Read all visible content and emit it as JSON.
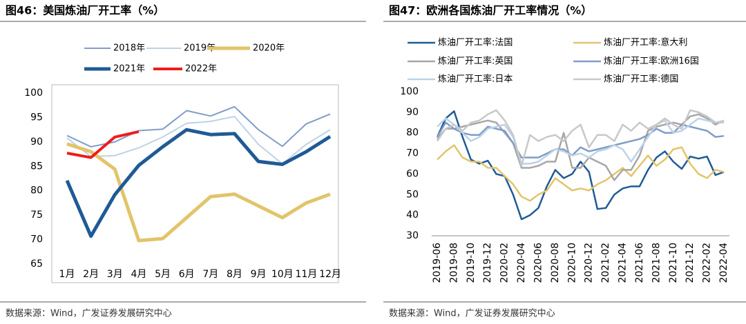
{
  "chart_data": [
    {
      "type": "line",
      "title": "图46：美国炼油厂开工率（%）",
      "categories": [
        "1月",
        "2月",
        "3月",
        "4月",
        "5月",
        "6月",
        "7月",
        "8月",
        "9月",
        "10月",
        "11月",
        "12月"
      ],
      "series": [
        {
          "name": "2018年",
          "color": "#7f9cc8",
          "values": [
            91.3,
            89,
            90,
            92.3,
            92.6,
            96.4,
            95.3,
            97.2,
            92.5,
            89.1,
            93.7,
            95.7
          ]
        },
        {
          "name": "2019年",
          "color": "#bcd2e8",
          "values": [
            90.8,
            87,
            87.2,
            88.8,
            91,
            93.8,
            94.2,
            95.2,
            89.5,
            85.5,
            89.5,
            92.5
          ]
        },
        {
          "name": "2020年",
          "color": "#e2c46a",
          "values": [
            89.6,
            88,
            84.4,
            69.8,
            70.2,
            74.5,
            78.8,
            79.3,
            76.9,
            74.5,
            77.5,
            79.3
          ]
        },
        {
          "name": "2021年",
          "color": "#1f5a96",
          "values": [
            82.1,
            70.7,
            79.2,
            85.2,
            89,
            92.5,
            91.5,
            91.7,
            86,
            85.4,
            88,
            91.1
          ]
        },
        {
          "name": "2022年",
          "color": "#ee1c1c",
          "values": [
            87.7,
            86.8,
            91,
            92.1,
            null,
            null,
            null,
            null,
            null,
            null,
            null,
            null
          ]
        }
      ],
      "ylim": [
        65,
        100
      ],
      "yticks": [
        65,
        70,
        75,
        80,
        85,
        90,
        95,
        100
      ],
      "source": "数据来源：Wind，广发证券发展研究中心"
    },
    {
      "type": "line",
      "title": "图47：欧洲各国炼油厂开工率情况（%）",
      "categories": [
        "2019-06",
        null,
        "2019-08",
        null,
        "2019-10",
        null,
        "2019-12",
        null,
        "2020-02",
        null,
        "2020-04",
        null,
        "2020-06",
        null,
        "2020-08",
        null,
        "2020-10",
        null,
        "2020-12",
        null,
        "2021-02",
        null,
        "2021-04",
        null,
        "2021-06",
        null,
        "2021-08",
        null,
        "2021-10",
        null,
        "2021-12",
        null,
        "2022-02",
        null,
        "2022-04"
      ],
      "series": [
        {
          "name": "炼油厂开工率:法国",
          "color": "#1f5a96",
          "values": [
            78,
            87,
            90.5,
            78,
            67,
            65,
            66.5,
            60,
            59,
            50,
            38,
            40,
            43.5,
            54,
            62,
            58,
            60,
            66,
            61,
            43,
            43.5,
            50,
            53,
            54,
            54,
            62,
            68,
            71,
            66,
            62.5,
            68.5,
            67.5,
            68.5,
            59.5,
            61
          ]
        },
        {
          "name": "炼油厂开工率:意大利",
          "color": "#e2c46a",
          "values": [
            67,
            71,
            74,
            68,
            66,
            66,
            63,
            63,
            59,
            55,
            49,
            47,
            50,
            52,
            58,
            55,
            52,
            53,
            52,
            55,
            57,
            60,
            63,
            59,
            64,
            69,
            64,
            67,
            72,
            73,
            65,
            60,
            58,
            62,
            61
          ]
        },
        {
          "name": "炼油厂开工率:英国",
          "color": "#a6a6a6",
          "values": [
            77,
            82,
            82,
            83,
            84,
            85,
            86,
            85,
            80,
            75,
            63,
            63,
            64,
            66,
            66,
            80,
            63,
            63,
            68,
            66,
            64,
            57,
            62,
            62,
            69,
            81,
            83,
            84,
            85,
            84,
            88,
            89,
            87,
            84,
            86
          ]
        },
        {
          "name": "炼油厂开工率:欧洲16国",
          "color": "#7f9cc8",
          "values": [
            78,
            85,
            82,
            80,
            79,
            79,
            83,
            82,
            81,
            75,
            68,
            68,
            68,
            70,
            72,
            72,
            69,
            73,
            71,
            72,
            73,
            74,
            75,
            76,
            77,
            79,
            82,
            80,
            80,
            84,
            83,
            82,
            81,
            78,
            78.5
          ]
        },
        {
          "name": "炼油厂开工率:日本",
          "color": "#bcd2e8",
          "values": [
            83,
            87,
            84,
            80,
            76,
            78,
            82,
            83,
            84,
            78,
            65,
            65,
            66,
            69,
            72,
            71,
            69,
            70,
            68,
            71,
            72,
            74,
            72,
            66,
            72,
            78,
            84,
            86,
            80,
            81,
            84,
            87,
            86,
            85,
            86
          ]
        },
        {
          "name": "炼油厂开工率:德国",
          "color": "#c8c8c8",
          "values": [
            76,
            82,
            84,
            81,
            85,
            86,
            89,
            91,
            86,
            79,
            64,
            79,
            76,
            78,
            79,
            76,
            81,
            84,
            73,
            79,
            79,
            76,
            84,
            81,
            85,
            82,
            84,
            87,
            84,
            82,
            91,
            90,
            88,
            85,
            85
          ]
        }
      ],
      "ylim": [
        30,
        100
      ],
      "yticks": [
        30,
        40,
        50,
        60,
        70,
        80,
        90,
        100
      ],
      "source": "数据来源：Wind，广发证券发展研究中心"
    }
  ]
}
